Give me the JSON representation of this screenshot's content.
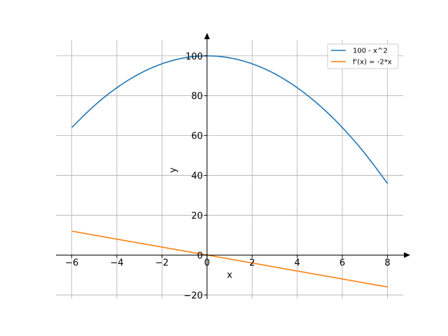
{
  "chart_data": {
    "type": "line",
    "title": "",
    "xlabel": "x",
    "ylabel": "y",
    "xlim": [
      -6.7,
      8.7
    ],
    "ylim": [
      -22,
      108
    ],
    "xticks": [
      -6,
      -4,
      -2,
      0,
      2,
      4,
      6,
      8
    ],
    "yticks": [
      -20,
      0,
      20,
      40,
      60,
      80,
      100
    ],
    "xtick_labels": [
      "−6",
      "−4",
      "−2",
      "0",
      "2",
      "4",
      "6",
      "8"
    ],
    "ytick_labels": [
      "−20",
      "0",
      "20",
      "40",
      "60",
      "80",
      "100"
    ],
    "grid": true,
    "legend_position": "top-right",
    "series": [
      {
        "name": "100 - x^2",
        "color": "#1f77b4",
        "x": [
          -6,
          -5,
          -4,
          -3,
          -2,
          -1,
          0,
          1,
          2,
          3,
          4,
          5,
          6,
          7,
          8
        ],
        "y": [
          64,
          75,
          84,
          91,
          96,
          99,
          100,
          99,
          96,
          91,
          84,
          75,
          64,
          51,
          36
        ]
      },
      {
        "name": "f'(x) = -2*x",
        "color": "#ff7f0e",
        "x": [
          -6,
          8
        ],
        "y": [
          12,
          -16
        ]
      }
    ]
  }
}
